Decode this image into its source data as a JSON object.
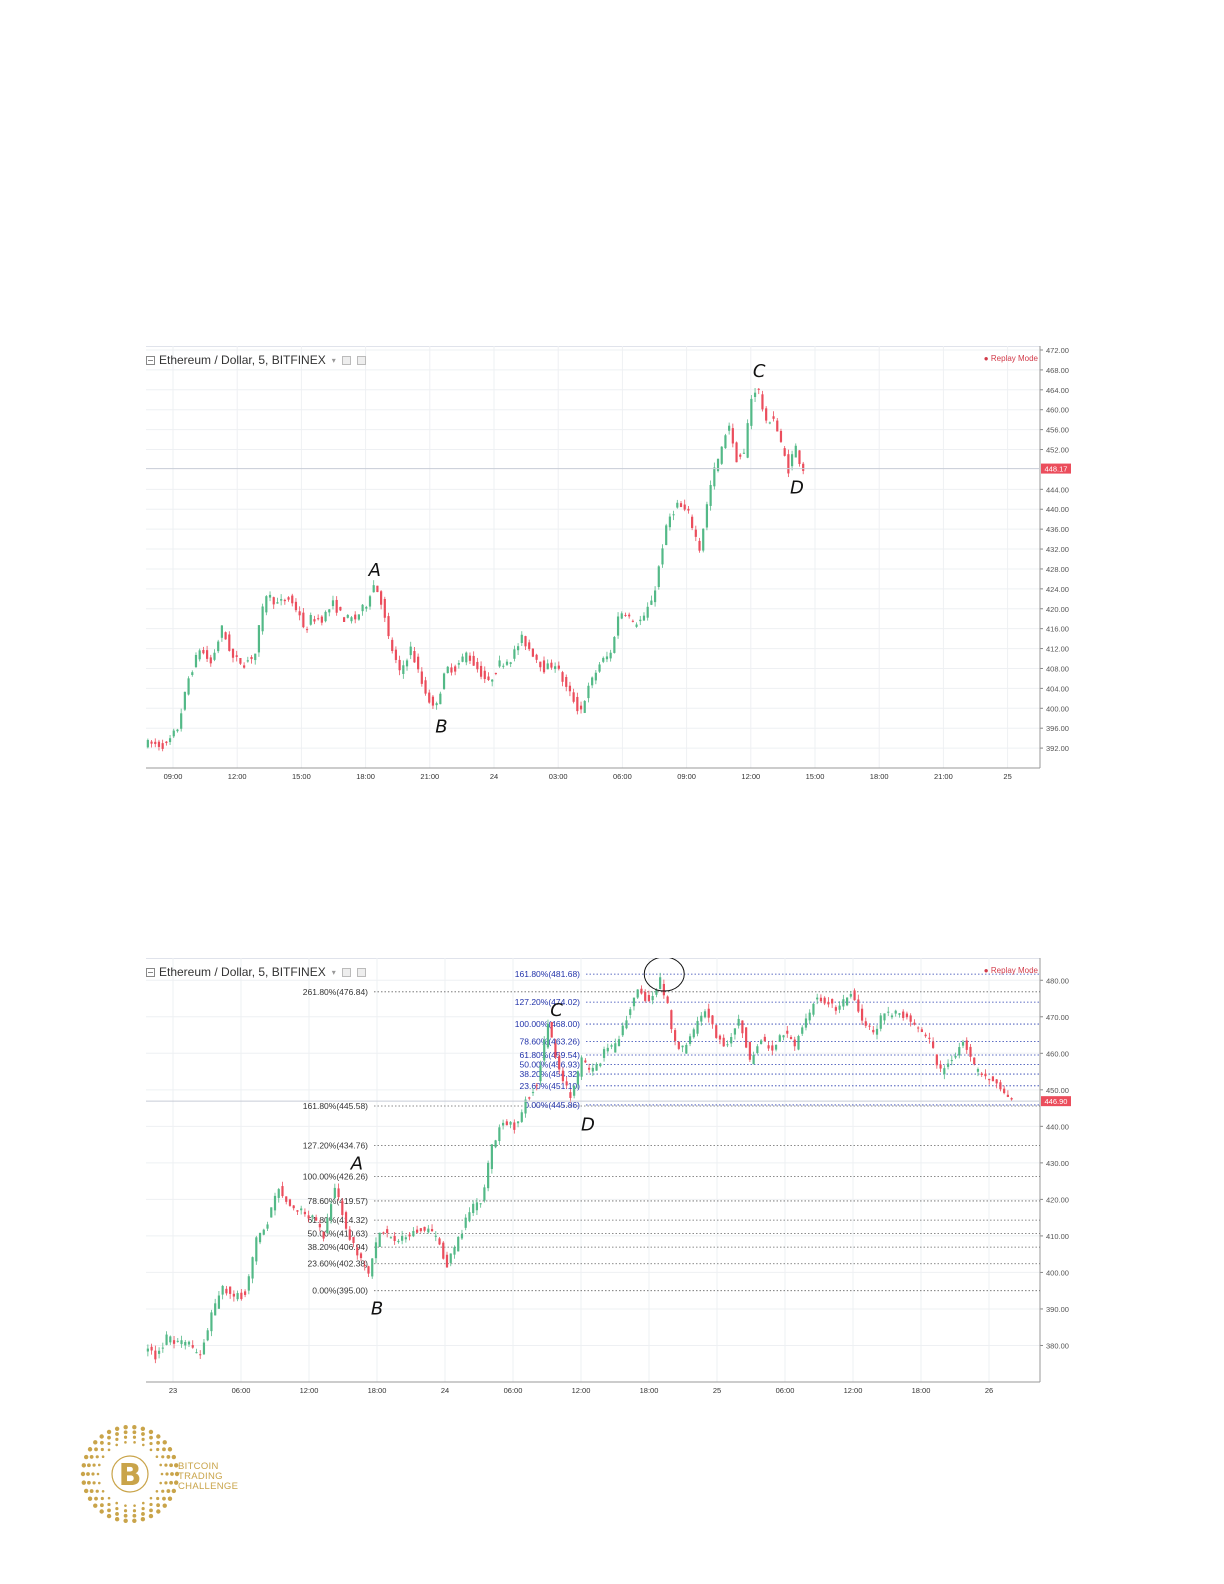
{
  "chart_data": [
    {
      "type": "candlestick",
      "title": "Ethereum / Dollar, 5, BITFINEX",
      "status": "Replay Mode",
      "ylim": [
        388,
        472
      ],
      "y_ticks": [
        472,
        468,
        464,
        460,
        456,
        452,
        444,
        440,
        436,
        432,
        428,
        424,
        420,
        416,
        412,
        408,
        404,
        400,
        396,
        392
      ],
      "y_tick_labels": [
        "472.00",
        "468.00",
        "464.00",
        "460.00",
        "456.00",
        "452.00",
        "444.00",
        "440.00",
        "436.00",
        "432.00",
        "428.00",
        "424.00",
        "420.00",
        "416.00",
        "412.00",
        "408.00",
        "404.00",
        "400.00",
        "396.00",
        "392.00"
      ],
      "last_price": 448.17,
      "last_price_label": "448.17",
      "x_tick_labels": [
        "09:00",
        "12:00",
        "15:00",
        "18:00",
        "21:00",
        "24",
        "03:00",
        "06:00",
        "09:00",
        "12:00",
        "15:00",
        "18:00",
        "21:00",
        "25"
      ],
      "price_path": [
        [
          0,
          393
        ],
        [
          1,
          392.5
        ],
        [
          1.5,
          396
        ],
        [
          2,
          406
        ],
        [
          2.5,
          412
        ],
        [
          3,
          409
        ],
        [
          3.5,
          416
        ],
        [
          4,
          410
        ],
        [
          4.5,
          409
        ],
        [
          5,
          411
        ],
        [
          5.2,
          417
        ],
        [
          5.5,
          423
        ],
        [
          6,
          421
        ],
        [
          6.5,
          422
        ],
        [
          7,
          419
        ],
        [
          7.2,
          415
        ],
        [
          7.5,
          418
        ],
        [
          8,
          418
        ],
        [
          8.5,
          421
        ],
        [
          9,
          418
        ],
        [
          9.5,
          418
        ],
        [
          10,
          421
        ],
        [
          10.3,
          425
        ],
        [
          10.6,
          423
        ],
        [
          11,
          414
        ],
        [
          11.5,
          407
        ],
        [
          12,
          412
        ],
        [
          12.5,
          405
        ],
        [
          13,
          400
        ],
        [
          13.3,
          403
        ],
        [
          13.6,
          408
        ],
        [
          14,
          408
        ],
        [
          14.5,
          411
        ],
        [
          15,
          408
        ],
        [
          15.5,
          405
        ],
        [
          16,
          409
        ],
        [
          16.5,
          410
        ],
        [
          17,
          414
        ],
        [
          17.5,
          411
        ],
        [
          18,
          408
        ],
        [
          18.5,
          409
        ],
        [
          19,
          404
        ],
        [
          19.3,
          402
        ],
        [
          19.6,
          399
        ],
        [
          20,
          404
        ],
        [
          20.5,
          409
        ],
        [
          21,
          411
        ],
        [
          21.3,
          418
        ],
        [
          21.6,
          420
        ],
        [
          22,
          417
        ],
        [
          22.5,
          418
        ],
        [
          23,
          424
        ],
        [
          23.3,
          432
        ],
        [
          23.6,
          438
        ],
        [
          24,
          441
        ],
        [
          24.5,
          439
        ],
        [
          25,
          432
        ],
        [
          25.3,
          440
        ],
        [
          25.6,
          447
        ],
        [
          26,
          452
        ],
        [
          26.3,
          458
        ],
        [
          26.6,
          450
        ],
        [
          27,
          451
        ],
        [
          27.3,
          462
        ],
        [
          27.6,
          465
        ],
        [
          28,
          457
        ],
        [
          28.3,
          459
        ],
        [
          28.6,
          454
        ],
        [
          29,
          448
        ],
        [
          29.3,
          453
        ],
        [
          29.6,
          448.17
        ]
      ],
      "annotations": [
        {
          "label": "A",
          "x": 10.3,
          "y": 425
        },
        {
          "label": "B",
          "x": 13.3,
          "y": 400
        },
        {
          "label": "C",
          "x": 27.6,
          "y": 465
        },
        {
          "label": "D",
          "x": 29.3,
          "y": 448
        }
      ]
    },
    {
      "type": "candlestick",
      "title": "Ethereum / Dollar, 5, BITFINEX",
      "status": "Replay Mode",
      "ylim": [
        370,
        485
      ],
      "y_ticks": [
        480,
        470,
        460,
        450,
        440,
        430,
        420,
        410,
        400,
        390,
        380
      ],
      "y_tick_labels": [
        "480.00",
        "470.00",
        "460.00",
        "450.00",
        "440.00",
        "430.00",
        "420.00",
        "410.00",
        "400.00",
        "390.00",
        "380.00"
      ],
      "last_price": 446.9,
      "last_price_label": "446.90",
      "x_tick_labels": [
        "23",
        "06:00",
        "12:00",
        "18:00",
        "24",
        "06:00",
        "12:00",
        "18:00",
        "25",
        "06:00",
        "12:00",
        "18:00",
        "26"
      ],
      "price_path": [
        [
          0,
          379.5
        ],
        [
          0.5,
          377
        ],
        [
          1,
          382
        ],
        [
          1.5,
          381
        ],
        [
          2,
          380
        ],
        [
          2.5,
          377
        ],
        [
          3,
          388
        ],
        [
          3.5,
          396
        ],
        [
          4,
          393
        ],
        [
          4.5,
          394
        ],
        [
          5,
          409
        ],
        [
          5.5,
          414
        ],
        [
          6,
          423
        ],
        [
          6.5,
          418
        ],
        [
          7,
          417
        ],
        [
          7.5,
          415
        ],
        [
          8,
          410
        ],
        [
          8.5,
          424
        ],
        [
          9,
          412
        ],
        [
          9.5,
          405
        ],
        [
          10,
          399
        ],
        [
          10.5,
          412
        ],
        [
          11,
          409
        ],
        [
          11.5,
          410
        ],
        [
          12,
          411
        ],
        [
          12.5,
          412
        ],
        [
          13,
          410
        ],
        [
          13.5,
          402
        ],
        [
          14,
          409
        ],
        [
          14.5,
          417
        ],
        [
          15,
          419
        ],
        [
          15.5,
          434
        ],
        [
          16,
          442
        ],
        [
          16.5,
          440
        ],
        [
          17,
          447
        ],
        [
          17.5,
          452
        ],
        [
          18,
          468
        ],
        [
          18.3,
          460
        ],
        [
          18.6,
          453
        ],
        [
          19,
          448
        ],
        [
          19.5,
          458
        ],
        [
          20,
          455
        ],
        [
          20.5,
          460
        ],
        [
          21,
          462
        ],
        [
          21.5,
          470
        ],
        [
          22,
          477
        ],
        [
          22.5,
          474
        ],
        [
          23,
          480
        ],
        [
          23.3,
          474
        ],
        [
          23.6,
          463
        ],
        [
          24,
          461
        ],
        [
          24.5,
          466
        ],
        [
          25,
          472
        ],
        [
          25.5,
          465
        ],
        [
          26,
          462
        ],
        [
          26.5,
          470
        ],
        [
          27,
          458
        ],
        [
          27.5,
          464
        ],
        [
          28,
          460
        ],
        [
          28.5,
          466
        ],
        [
          29,
          462
        ],
        [
          29.5,
          469
        ],
        [
          30,
          476
        ],
        [
          30.5,
          474
        ],
        [
          31,
          472
        ],
        [
          31.5,
          477
        ],
        [
          32,
          469
        ],
        [
          32.5,
          466
        ],
        [
          33,
          471
        ],
        [
          33.5,
          471
        ],
        [
          34,
          470
        ],
        [
          34.5,
          467
        ],
        [
          35,
          463
        ],
        [
          35.5,
          455
        ],
        [
          36,
          459
        ],
        [
          36.5,
          463
        ],
        [
          37,
          456
        ],
        [
          37.5,
          454
        ],
        [
          38,
          451
        ],
        [
          38.5,
          447
        ]
      ],
      "annotations": [
        {
          "label": "A",
          "x": 9.4,
          "y": 426
        },
        {
          "label": "B",
          "x": 10.3,
          "y": 395
        },
        {
          "label": "C",
          "x": 18.3,
          "y": 468
        },
        {
          "label": "D",
          "x": 19.7,
          "y": 445.5
        }
      ],
      "fib_left": [
        {
          "label": "261.80%(476.84)",
          "price": 476.84
        },
        {
          "label": "161.80%(445.58)",
          "price": 445.58
        },
        {
          "label": "127.20%(434.76)",
          "price": 434.76
        },
        {
          "label": "100.00%(426.26)",
          "price": 426.26
        },
        {
          "label": "78.60%(419.57)",
          "price": 419.57
        },
        {
          "label": "61.80%(414.32)",
          "price": 414.32
        },
        {
          "label": "50.00%(410.63)",
          "price": 410.63
        },
        {
          "label": "38.20%(406.94)",
          "price": 406.94
        },
        {
          "label": "23.60%(402.38)",
          "price": 402.38
        },
        {
          "label": "0.00%(395.00)",
          "price": 395
        }
      ],
      "fib_right": [
        {
          "label": "161.80%(481.68)",
          "price": 481.68
        },
        {
          "label": "127.20%(474.02)",
          "price": 474.02
        },
        {
          "label": "100.00%(468.00)",
          "price": 468
        },
        {
          "label": "78.60%(463.26)",
          "price": 463.26
        },
        {
          "label": "61.80%(459.54)",
          "price": 459.54
        },
        {
          "label": "50.00%(456.93)",
          "price": 456.93
        },
        {
          "label": "38.20%(454.32)",
          "price": 454.32
        },
        {
          "label": "23.60%(451.10)",
          "price": 451.1
        },
        {
          "label": "0.00%(445.86)",
          "price": 445.86
        }
      ],
      "highlight_ellipse_at": {
        "x": 23.1,
        "y": 481.7
      }
    }
  ],
  "logo": {
    "symbol": "B",
    "line1": "BITCOIN",
    "line2": "TRADING",
    "line3": "CHALLENGE",
    "color": "#c9a44a"
  }
}
